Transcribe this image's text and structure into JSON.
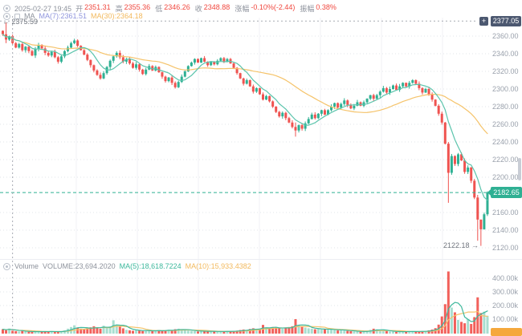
{
  "toolbar": {
    "datetime": "2025-02-27 19:45",
    "fields": [
      {
        "label": "开",
        "value": "2351.31"
      },
      {
        "label": "高",
        "value": "2355.36"
      },
      {
        "label": "低",
        "value": "2346.26"
      },
      {
        "label": "收",
        "value": "2348.88"
      },
      {
        "label": "涨幅",
        "value": "-0.10%(-2.44)"
      },
      {
        "label": "振幅",
        "value": "0.38%"
      }
    ],
    "ma_group_label": "MA",
    "ma7_label": "MA(7):2361.51",
    "ma30_label": "MA(30):2364.18"
  },
  "volume_header": {
    "name": "Volume",
    "volume_label": "VOLUME:23,694.2020",
    "ma5_label": "MA(5):18,618.7224",
    "ma10_label": "MA(10):15,933.4382"
  },
  "annotations": {
    "high_label": "← 2375.59",
    "low_label": "2122.18 →",
    "crosshair_price": "2377.05",
    "crosshair_plus": "+",
    "last_price": "2182.65"
  },
  "price_axis": {
    "labels": [
      "2360.00",
      "2340.00",
      "2320.00",
      "2300.00",
      "2280.00",
      "2260.00",
      "2240.00",
      "2220.00",
      "2200.00",
      "2160.00",
      "2140.00",
      "2120.00"
    ],
    "values": [
      2360,
      2340,
      2320,
      2300,
      2280,
      2260,
      2240,
      2220,
      2200,
      2160,
      2140,
      2120
    ]
  },
  "volume_axis": {
    "labels": [
      "400.00k",
      "300.00k",
      "200.00k",
      "100.00k"
    ],
    "values": [
      400,
      300,
      200,
      100
    ]
  },
  "colors": {
    "up": "#2fb093",
    "down": "#ef5350",
    "vol_up": "#a8ded0",
    "vol_down": "#f2605b",
    "ma7": "#5bc4ac",
    "ma30": "#f5c36a",
    "vol_ma5": "#3db89c",
    "vol_ma10": "#f5c36a",
    "grid": "#e0e4ea",
    "vgrid": "#f1f2f5",
    "crosshair": "#a7abb3",
    "last_price_line": "#2fb093"
  },
  "chart_data": {
    "type": "candlestick",
    "first_open": 2366,
    "closes": [
      2362,
      2356,
      2360,
      2352,
      2347,
      2351,
      2344,
      2348,
      2343,
      2338,
      2345,
      2350,
      2346,
      2341,
      2338,
      2342,
      2336,
      2331,
      2337,
      2343,
      2347,
      2352,
      2355,
      2349,
      2344,
      2339,
      2333,
      2327,
      2321,
      2316,
      2312,
      2318,
      2325,
      2332,
      2337,
      2341,
      2336,
      2331,
      2334,
      2329,
      2324,
      2328,
      2322,
      2317,
      2322,
      2326,
      2321,
      2325,
      2319,
      2314,
      2309,
      2313,
      2307,
      2302,
      2308,
      2314,
      2320,
      2326,
      2330,
      2334,
      2330,
      2335,
      2331,
      2327,
      2331,
      2328,
      2332,
      2335,
      2331,
      2334,
      2329,
      2324,
      2318,
      2312,
      2306,
      2310,
      2303,
      2297,
      2301,
      2294,
      2288,
      2292,
      2286,
      2280,
      2274,
      2269,
      2273,
      2267,
      2262,
      2257,
      2253,
      2259,
      2255,
      2261,
      2266,
      2271,
      2267,
      2272,
      2276,
      2271,
      2276,
      2280,
      2284,
      2279,
      2283,
      2287,
      2282,
      2278,
      2281,
      2285,
      2281,
      2285,
      2289,
      2293,
      2289,
      2293,
      2297,
      2301,
      2296,
      2300,
      2304,
      2299,
      2303,
      2307,
      2303,
      2307,
      2310,
      2306,
      2301,
      2296,
      2300,
      2294,
      2288,
      2281,
      2272,
      2262,
      2238,
      2205,
      2224,
      2215,
      2226,
      2219,
      2206,
      2211,
      2196,
      2177,
      2152,
      2141,
      2158,
      2182.65
    ],
    "wick_overrides": {
      "1": [
        2352,
        2375.59
      ],
      "90": [
        2246,
        2262
      ],
      "137": [
        2171,
        2240
      ],
      "146": [
        2128,
        2180
      ],
      "147": [
        2122.18,
        2152
      ],
      "149": [
        2156,
        2184
      ]
    },
    "volumes_k": [
      26,
      19,
      31,
      15,
      12,
      10,
      14,
      9,
      8,
      6,
      8,
      12,
      10,
      9,
      7,
      11,
      9,
      8,
      10,
      18,
      30,
      42,
      55,
      38,
      30,
      26,
      34,
      40,
      48,
      36,
      30,
      52,
      38,
      46,
      92,
      60,
      44,
      33,
      22,
      18,
      15,
      20,
      16,
      13,
      18,
      14,
      12,
      16,
      20,
      15,
      18,
      22,
      17,
      26,
      30,
      24,
      20,
      16,
      14,
      12,
      10,
      14,
      11,
      9,
      12,
      10,
      8,
      11,
      9,
      13,
      10,
      12,
      16,
      20,
      24,
      20,
      28,
      33,
      26,
      30,
      58,
      36,
      30,
      42,
      38,
      34,
      30,
      36,
      42,
      48,
      100,
      54,
      44,
      38,
      33,
      30,
      26,
      30,
      24,
      28,
      22,
      26,
      20,
      18,
      22,
      16,
      14,
      12,
      10,
      9,
      8,
      10,
      12,
      22,
      30,
      26,
      18,
      14,
      12,
      10,
      8,
      7,
      9,
      8,
      10,
      12,
      9,
      8,
      10,
      12,
      14,
      18,
      24,
      34,
      60,
      120,
      210,
      450,
      185,
      150,
      95,
      80,
      70,
      100,
      65,
      115,
      260,
      145,
      155,
      125
    ],
    "overlays": [
      {
        "name": "MA7",
        "period": 7
      },
      {
        "name": "MA30",
        "period": 30
      }
    ],
    "volume_overlays": [
      {
        "name": "MA5",
        "period": 5
      },
      {
        "name": "MA10",
        "period": 10
      }
    ],
    "visible_high": 2375.59,
    "visible_low": 2122.18,
    "last_price_value": 2182.65,
    "crosshair_price_value": 2377.05,
    "crosshair_x_index": 3,
    "price_axis_range": [
      2110,
      2380
    ],
    "volume_axis_range_k": [
      0,
      450
    ]
  }
}
